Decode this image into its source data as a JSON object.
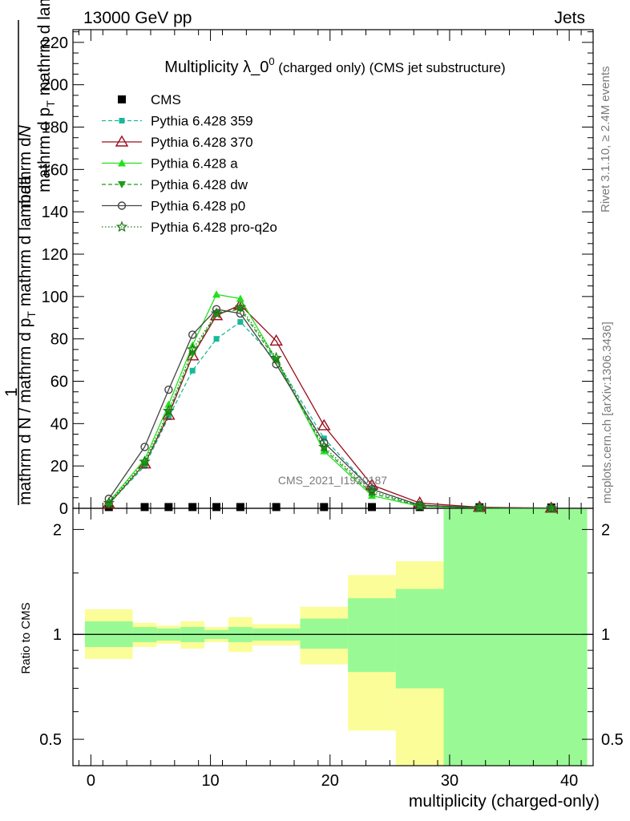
{
  "header": {
    "energy_label": "13000 GeV pp",
    "category_label": "Jets"
  },
  "side_text": {
    "rivet": "Rivet 3.1.10, ≥ 2.4M events",
    "mcplots": "mcplots.cern.ch [arXiv:1306.3436]"
  },
  "watermark": "CMS_2021_I1920187",
  "chart_data": [
    {
      "type": "line",
      "title": {
        "main": "Multiplicity λ_0",
        "sup": "0",
        "sub": " (charged only) (CMS jet substructure)"
      },
      "ylabel": {
        "top": "mathrm d",
        "top_italic": "N",
        "bottom": "mathrm d p",
        "bottom_sub": "T",
        "bottom_end": " mathrm d lambda",
        "prefix_num": "1",
        "prefix_den": "mathrm d N / mathrm d p",
        "prefix_den_sub": "T",
        "prefix_den_end": " mathrm d lambda"
      },
      "ylim": [
        0,
        226
      ],
      "yticks": [
        "0",
        "20",
        "40",
        "60",
        "80",
        "100",
        "120",
        "140",
        "160",
        "180",
        "200",
        "220"
      ],
      "xlim": [
        -1.5,
        42
      ],
      "grid": false,
      "legend_position": "top-left",
      "series": [
        {
          "name": "CMS",
          "color": "#000000",
          "marker": "square",
          "x": [
            1.5,
            4.5,
            6.5,
            8.5,
            10.5,
            12.5,
            15.5,
            19.5,
            23.5,
            27.5,
            32.5,
            38.5
          ],
          "values": [
            0.6,
            0.6,
            0.6,
            0.6,
            0.6,
            0.6,
            0.6,
            0.6,
            0.6,
            0.6,
            0.5,
            0.4
          ]
        },
        {
          "name": "Pythia 6.428 359",
          "color": "#19b899",
          "marker": "small-square",
          "dash": "dashed",
          "x": [
            1.5,
            4.5,
            6.5,
            8.5,
            10.5,
            12.5,
            15.5,
            19.5,
            23.5,
            27.5,
            32.5,
            38.5
          ],
          "values": [
            2,
            20,
            43,
            65,
            80,
            88,
            70,
            33,
            9,
            1.5,
            0.3,
            0.05
          ]
        },
        {
          "name": "Pythia 6.428 370",
          "color": "#9b0d1c",
          "marker": "open-triangle",
          "dash": "solid",
          "x": [
            1.5,
            4.5,
            6.5,
            8.5,
            10.5,
            12.5,
            15.5,
            19.5,
            23.5,
            27.5,
            32.5,
            38.5
          ],
          "values": [
            2,
            21,
            44,
            72,
            91,
            96,
            79,
            39,
            11,
            2.5,
            0.5,
            0.1
          ]
        },
        {
          "name": "Pythia 6.428 a",
          "color": "#22e01c",
          "marker": "triangle",
          "dash": "solid",
          "x": [
            1.5,
            4.5,
            6.5,
            8.5,
            10.5,
            12.5,
            15.5,
            19.5,
            23.5,
            27.5,
            32.5,
            38.5
          ],
          "values": [
            3,
            23,
            49,
            77,
            101,
            99,
            70,
            27,
            6,
            1,
            0.2,
            0.03
          ]
        },
        {
          "name": "Pythia 6.428 dw",
          "color": "#1a9e1a",
          "marker": "triangle-down",
          "dash": "dashed",
          "x": [
            1.5,
            4.5,
            6.5,
            8.5,
            10.5,
            12.5,
            15.5,
            19.5,
            23.5,
            27.5,
            32.5,
            38.5
          ],
          "values": [
            2,
            21,
            45,
            73,
            92,
            94,
            70,
            28,
            7,
            1.2,
            0.2,
            0.04
          ]
        },
        {
          "name": "Pythia 6.428 p0",
          "color": "#444444",
          "marker": "open-circle",
          "dash": "solid",
          "x": [
            1.5,
            4.5,
            6.5,
            8.5,
            10.5,
            12.5,
            15.5,
            19.5,
            23.5,
            27.5,
            32.5,
            38.5
          ],
          "values": [
            4.5,
            29,
            56,
            82,
            94,
            92,
            68,
            31,
            9,
            1.5,
            0.3,
            0.05
          ]
        },
        {
          "name": "Pythia 6.428 pro-q2o",
          "color": "#1e7a14",
          "marker": "open-star",
          "dash": "dotted",
          "x": [
            1.5,
            4.5,
            6.5,
            8.5,
            10.5,
            12.5,
            15.5,
            19.5,
            23.5,
            27.5,
            32.5,
            38.5
          ],
          "values": [
            2.5,
            22,
            46,
            75,
            92,
            95,
            71,
            29,
            8,
            1.3,
            0.3,
            0.05
          ]
        }
      ]
    },
    {
      "type": "area",
      "ylabel": "Ratio to CMS",
      "xlabel": "multiplicity (charged-only)",
      "log_y": true,
      "ylim": [
        0.42,
        2.3
      ],
      "yticks": [
        "0.5",
        "1",
        "2"
      ],
      "ytick_values": [
        0.5,
        1,
        2
      ],
      "xlim": [
        -1.5,
        42
      ],
      "xticks": [
        "0",
        "10",
        "20",
        "30",
        "40"
      ],
      "xtick_values": [
        0,
        10,
        20,
        30,
        40
      ],
      "reference_line": 1,
      "bands": [
        {
          "name": "stat",
          "color": "#99fa95",
          "bins": [
            {
              "x0": -0.5,
              "x1": 3.5,
              "lo": 0.92,
              "hi": 1.09
            },
            {
              "x0": 3.5,
              "x1": 5.5,
              "lo": 0.95,
              "hi": 1.05
            },
            {
              "x0": 5.5,
              "x1": 7.5,
              "lo": 0.96,
              "hi": 1.04
            },
            {
              "x0": 7.5,
              "x1": 9.5,
              "lo": 0.95,
              "hi": 1.05
            },
            {
              "x0": 9.5,
              "x1": 11.5,
              "lo": 0.97,
              "hi": 1.03
            },
            {
              "x0": 11.5,
              "x1": 13.5,
              "lo": 0.95,
              "hi": 1.05
            },
            {
              "x0": 13.5,
              "x1": 17.5,
              "lo": 0.96,
              "hi": 1.04
            },
            {
              "x0": 17.5,
              "x1": 21.5,
              "lo": 0.91,
              "hi": 1.11
            },
            {
              "x0": 21.5,
              "x1": 25.5,
              "lo": 0.78,
              "hi": 1.27
            },
            {
              "x0": 25.5,
              "x1": 29.5,
              "lo": 0.7,
              "hi": 1.35
            },
            {
              "x0": 29.5,
              "x1": 35.5,
              "lo": 0.3,
              "hi": 2.5
            },
            {
              "x0": 35.5,
              "x1": 41.5,
              "lo": 0.3,
              "hi": 2.5
            }
          ]
        },
        {
          "name": "total",
          "color": "#fbfd98",
          "bins": [
            {
              "x0": -0.5,
              "x1": 3.5,
              "lo": 0.85,
              "hi": 1.18
            },
            {
              "x0": 3.5,
              "x1": 5.5,
              "lo": 0.92,
              "hi": 1.08
            },
            {
              "x0": 5.5,
              "x1": 7.5,
              "lo": 0.94,
              "hi": 1.06
            },
            {
              "x0": 7.5,
              "x1": 9.5,
              "lo": 0.91,
              "hi": 1.09
            },
            {
              "x0": 9.5,
              "x1": 11.5,
              "lo": 0.95,
              "hi": 1.05
            },
            {
              "x0": 11.5,
              "x1": 13.5,
              "lo": 0.89,
              "hi": 1.12
            },
            {
              "x0": 13.5,
              "x1": 17.5,
              "lo": 0.93,
              "hi": 1.07
            },
            {
              "x0": 17.5,
              "x1": 21.5,
              "lo": 0.82,
              "hi": 1.2
            },
            {
              "x0": 21.5,
              "x1": 25.5,
              "lo": 0.53,
              "hi": 1.48
            },
            {
              "x0": 25.5,
              "x1": 29.5,
              "lo": 0.3,
              "hi": 1.62
            },
            {
              "x0": 29.5,
              "x1": 35.5,
              "lo": 0.3,
              "hi": 2.5
            },
            {
              "x0": 35.5,
              "x1": 41.5,
              "lo": 0.3,
              "hi": 2.5
            }
          ]
        }
      ]
    }
  ]
}
